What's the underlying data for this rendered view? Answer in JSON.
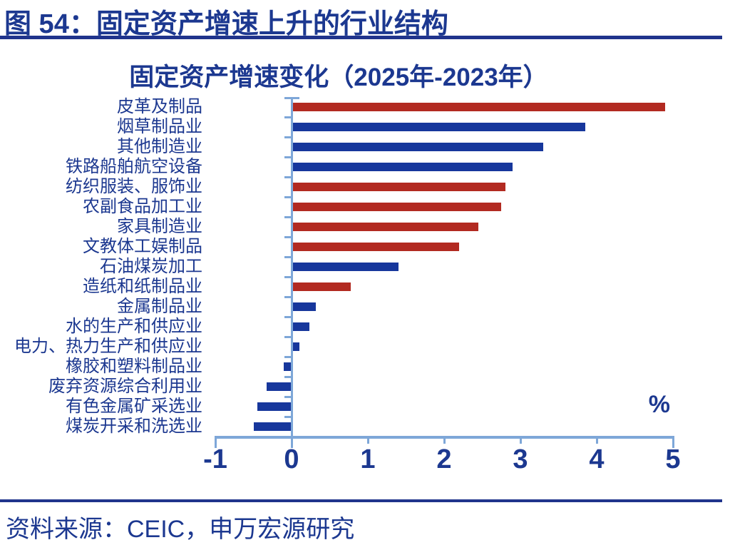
{
  "header": {
    "title": "图 54：固定资产增速上升的行业结构"
  },
  "footer": {
    "source": "资料来源：CEIC，申万宏源研究"
  },
  "chart": {
    "colors": {
      "red": "#b22a21",
      "blue": "#17379c",
      "axis": "#7ea7d8",
      "text": "#1c3890"
    }
  },
  "chart_data": {
    "type": "bar",
    "orientation": "horizontal",
    "title": "固定资产增速变化（2025年-2023年）",
    "xlabel": "%",
    "xlim": [
      -1,
      5
    ],
    "x_ticks": [
      -1,
      0,
      1,
      2,
      3,
      4,
      5
    ],
    "grid": false,
    "legend": "none",
    "categories": [
      "皮革及制品",
      "烟草制品业",
      "其他制造业",
      "铁路船舶航空设备",
      "纺织服装、服饰业",
      "农副食品加工业",
      "家具制造业",
      "文教体工娱制品",
      "石油煤炭加工",
      "造纸和纸制品业",
      "金属制品业",
      "水的生产和供应业",
      "电力、热力生产和供应业",
      "橡胶和塑料制品业",
      "废弃资源综合利用业",
      "有色金属矿采选业",
      "煤炭开采和洗选业"
    ],
    "values": [
      4.9,
      3.85,
      3.3,
      2.9,
      2.8,
      2.75,
      2.45,
      2.2,
      1.4,
      0.78,
      0.32,
      0.23,
      0.1,
      -0.1,
      -0.33,
      -0.45,
      -0.5
    ],
    "bar_colors": [
      "red",
      "blue",
      "blue",
      "blue",
      "red",
      "red",
      "red",
      "red",
      "blue",
      "red",
      "blue",
      "blue",
      "blue",
      "blue",
      "blue",
      "blue",
      "blue"
    ]
  }
}
